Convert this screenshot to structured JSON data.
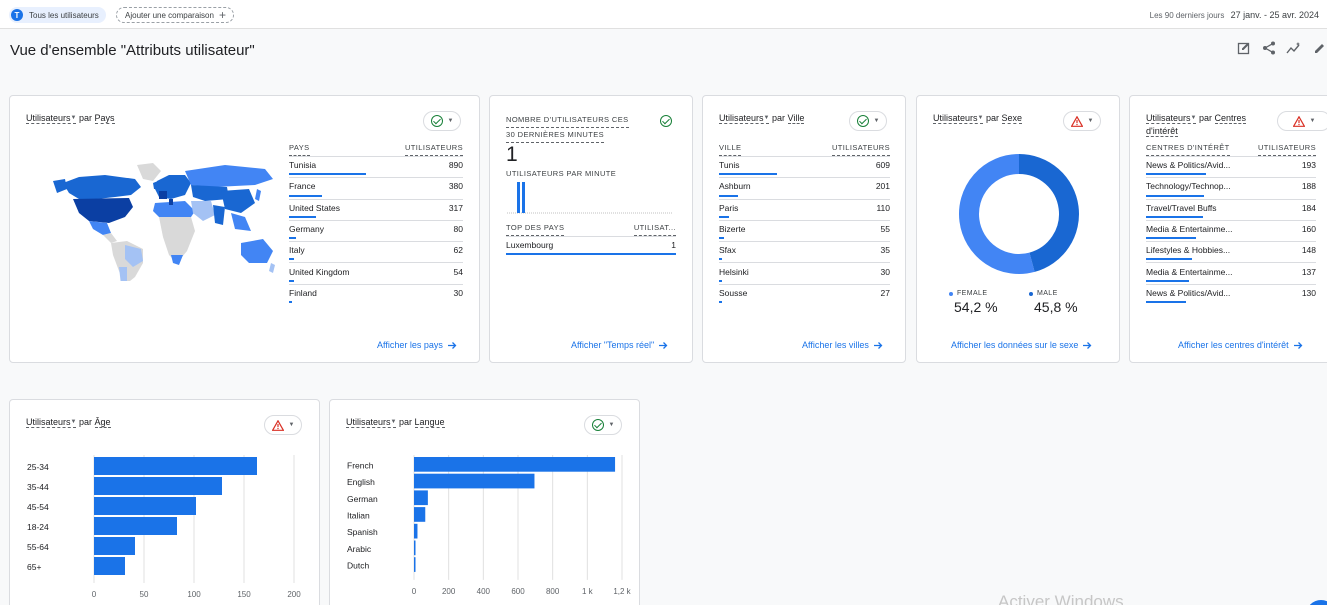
{
  "topbar": {
    "segment_chip": {
      "avatar_letter": "T",
      "label": "Tous les utilisateurs"
    },
    "add_comparison": {
      "label": "Ajouter une comparaison",
      "icon": "plus-icon"
    },
    "date_range": {
      "label": "Les 90 derniers jours",
      "dates": "27 janv. - 25 avr. 2024"
    }
  },
  "page": {
    "title": "Vue d'ensemble \"Attributs utilisateur\"",
    "actions": [
      "edit-report-icon",
      "share-icon",
      "insights-icon",
      "edit-icon"
    ]
  },
  "colors": {
    "accent": "#1a73e8",
    "ok": "#188038",
    "warn": "#d93025",
    "female": "#4285f4",
    "male": "#1967d2"
  },
  "cards": {
    "country": {
      "title_metric": "Utilisateurs",
      "title_by": "par",
      "title_dim": "Pays",
      "status": "ok",
      "col_dim": "PAYS",
      "col_metric": "UTILISATEURS",
      "rows": [
        {
          "label": "Tunisia",
          "value": "890",
          "share": 1.0
        },
        {
          "label": "France",
          "value": "380",
          "share": 0.427
        },
        {
          "label": "United States",
          "value": "317",
          "share": 0.356
        },
        {
          "label": "Germany",
          "value": "80",
          "share": 0.09
        },
        {
          "label": "Italy",
          "value": "62",
          "share": 0.07
        },
        {
          "label": "United Kingdom",
          "value": "54",
          "share": 0.061
        },
        {
          "label": "Finland",
          "value": "30",
          "share": 0.034
        }
      ],
      "link": "Afficher les pays"
    },
    "realtime": {
      "title_line1": "NOMBRE D'UTILISATEURS CES",
      "title_line2": "30 DERNIÈRES MINUTES",
      "status": "ok",
      "count": "1",
      "per_minute_label": "UTILISATEURS PAR MINUTE",
      "per_minute": [
        0,
        0,
        0,
        0,
        0,
        0,
        0,
        0,
        0,
        0,
        0,
        0,
        0,
        0,
        0,
        0,
        0,
        0,
        0,
        0,
        0,
        0,
        0,
        0,
        0,
        0,
        1,
        1,
        0,
        0
      ],
      "col_dim": "TOP DES PAYS",
      "col_metric": "UTILISAT...",
      "rows": [
        {
          "label": "Luxembourg",
          "value": "1",
          "share": 1.0
        }
      ],
      "link": "Afficher \"Temps réel\""
    },
    "city": {
      "title_metric": "Utilisateurs",
      "title_by": "par",
      "title_dim": "Ville",
      "status": "ok",
      "col_dim": "VILLE",
      "col_metric": "UTILISATEURS",
      "rows": [
        {
          "label": "Tunis",
          "value": "609",
          "share": 1.0
        },
        {
          "label": "Ashburn",
          "value": "201",
          "share": 0.33
        },
        {
          "label": "Paris",
          "value": "110",
          "share": 0.181
        },
        {
          "label": "Bizerte",
          "value": "55",
          "share": 0.09
        },
        {
          "label": "Sfax",
          "value": "35",
          "share": 0.057
        },
        {
          "label": "Helsinki",
          "value": "30",
          "share": 0.049
        },
        {
          "label": "Sousse",
          "value": "27",
          "share": 0.044
        }
      ],
      "link": "Afficher les villes"
    },
    "gender": {
      "title_metric": "Utilisateurs",
      "title_by": "par",
      "title_dim": "Sexe",
      "status": "warn",
      "legend": [
        {
          "label": "FEMALE",
          "value": "54,2 %",
          "pct": 54.2
        },
        {
          "label": "MALE",
          "value": "45,8 %",
          "pct": 45.8
        }
      ],
      "link": "Afficher les données sur le sexe"
    },
    "interests": {
      "title_metric": "Utilisateurs",
      "title_by": "par",
      "title_dim": "Centres d'intérêt",
      "status": "warn",
      "col_dim": "CENTRES D'INTÉRÊT",
      "col_metric": "UTILISATEURS",
      "rows": [
        {
          "label": "News & Politics/Avid...",
          "value": "193",
          "share": 1.0
        },
        {
          "label": "Technology/Technop...",
          "value": "188",
          "share": 0.974
        },
        {
          "label": "Travel/Travel Buffs",
          "value": "184",
          "share": 0.953
        },
        {
          "label": "Media & Entertainme...",
          "value": "160",
          "share": 0.829
        },
        {
          "label": "Lifestyles & Hobbies...",
          "value": "148",
          "share": 0.767
        },
        {
          "label": "Media & Entertainme...",
          "value": "137",
          "share": 0.71
        },
        {
          "label": "News & Politics/Avid...",
          "value": "130",
          "share": 0.674
        }
      ],
      "link": "Afficher les centres d'intérêt"
    },
    "age": {
      "title_metric": "Utilisateurs",
      "title_by": "par",
      "title_dim": "Âge",
      "status": "warn"
    },
    "language": {
      "title_metric": "Utilisateurs",
      "title_by": "par",
      "title_dim": "Langue",
      "status": "ok"
    }
  },
  "chart_data": [
    {
      "type": "bar",
      "orientation": "horizontal",
      "categories": [
        "25-34",
        "35-44",
        "45-54",
        "18-24",
        "55-64",
        "65+"
      ],
      "values": [
        163,
        128,
        102,
        83,
        41,
        31
      ],
      "xlim": [
        0,
        200
      ],
      "xticks": [
        "0",
        "50",
        "100",
        "150",
        "200"
      ],
      "grid": true
    },
    {
      "type": "bar",
      "orientation": "horizontal",
      "categories": [
        "French",
        "English",
        "German",
        "Italian",
        "Spanish",
        "Arabic",
        "Dutch"
      ],
      "values": [
        1160,
        695,
        80,
        65,
        20,
        8,
        5
      ],
      "xlim": [
        0,
        1200
      ],
      "xticks": [
        "0",
        "200",
        "400",
        "600",
        "800",
        "1 k",
        "1,2 k"
      ],
      "grid": true
    }
  ],
  "watermark": "Activer Windows"
}
